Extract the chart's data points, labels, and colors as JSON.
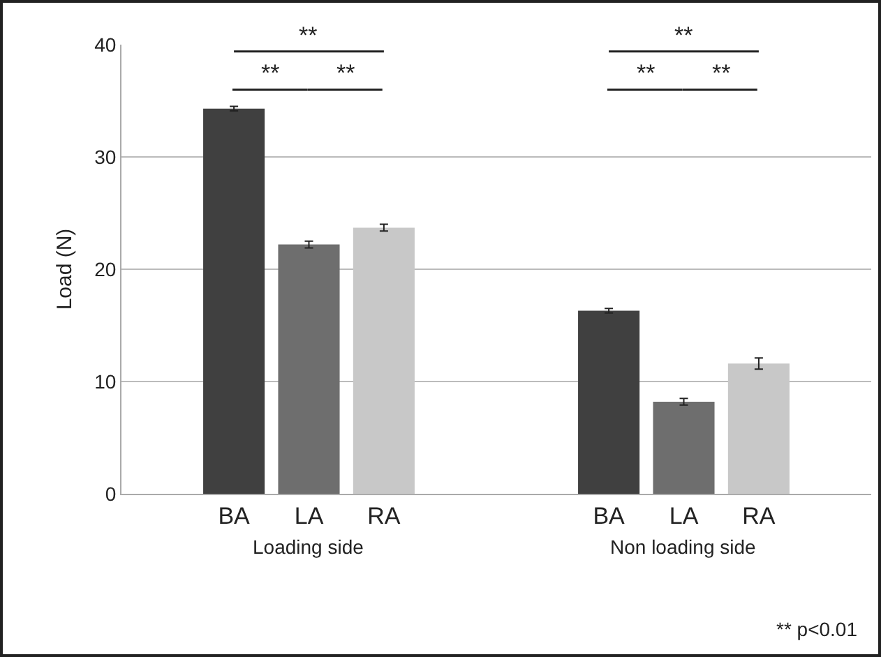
{
  "chart_data": {
    "type": "bar",
    "ylabel": "Load (N)",
    "categories": [
      "BA",
      "LA",
      "RA",
      null,
      null,
      "BA",
      "LA",
      "RA"
    ],
    "values": [
      34.3,
      22.2,
      23.7,
      null,
      null,
      16.3,
      8.2,
      11.6
    ],
    "errors": [
      0.2,
      0.3,
      0.3,
      null,
      null,
      0.2,
      0.3,
      0.5
    ],
    "colors": [
      "#404040",
      "#6e6e6e",
      "#c8c8c8",
      null,
      null,
      "#404040",
      "#6e6e6e",
      "#c8c8c8"
    ],
    "ylim": [
      0,
      40
    ],
    "yticks": [
      0,
      10,
      20,
      30,
      40
    ],
    "grid": "y",
    "annotations": [
      "**",
      "**",
      "**",
      "**",
      "**",
      "**",
      "Loading side",
      "Non loading side",
      "** p<0.01"
    ]
  }
}
